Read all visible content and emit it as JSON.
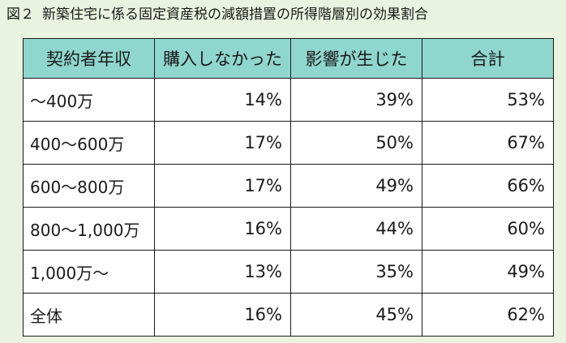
{
  "figure": {
    "number": "図２",
    "title": "新築住宅に係る固定資産税の減額措置の所得階層別の効果割合"
  },
  "table": {
    "headers": [
      "契約者年収",
      "購入しなかった",
      "影響が生じた",
      "合計"
    ],
    "rows": [
      {
        "income": "～400万",
        "not_purchased": "14%",
        "affected": "39%",
        "total": "53%"
      },
      {
        "income": "400～600万",
        "not_purchased": "17%",
        "affected": "50%",
        "total": "67%"
      },
      {
        "income": "600～800万",
        "not_purchased": "17%",
        "affected": "49%",
        "total": "66%"
      },
      {
        "income": "800～1,000万",
        "not_purchased": "16%",
        "affected": "44%",
        "total": "60%"
      },
      {
        "income": "1,000万～",
        "not_purchased": "13%",
        "affected": "35%",
        "total": "49%"
      },
      {
        "income": "全体",
        "not_purchased": "16%",
        "affected": "45%",
        "total": "62%"
      }
    ]
  },
  "colors": {
    "page_background": "#e9f3e0",
    "header_background": "#8fd6ce",
    "cell_background": "#ffffff",
    "border": "#1a1a1a"
  }
}
